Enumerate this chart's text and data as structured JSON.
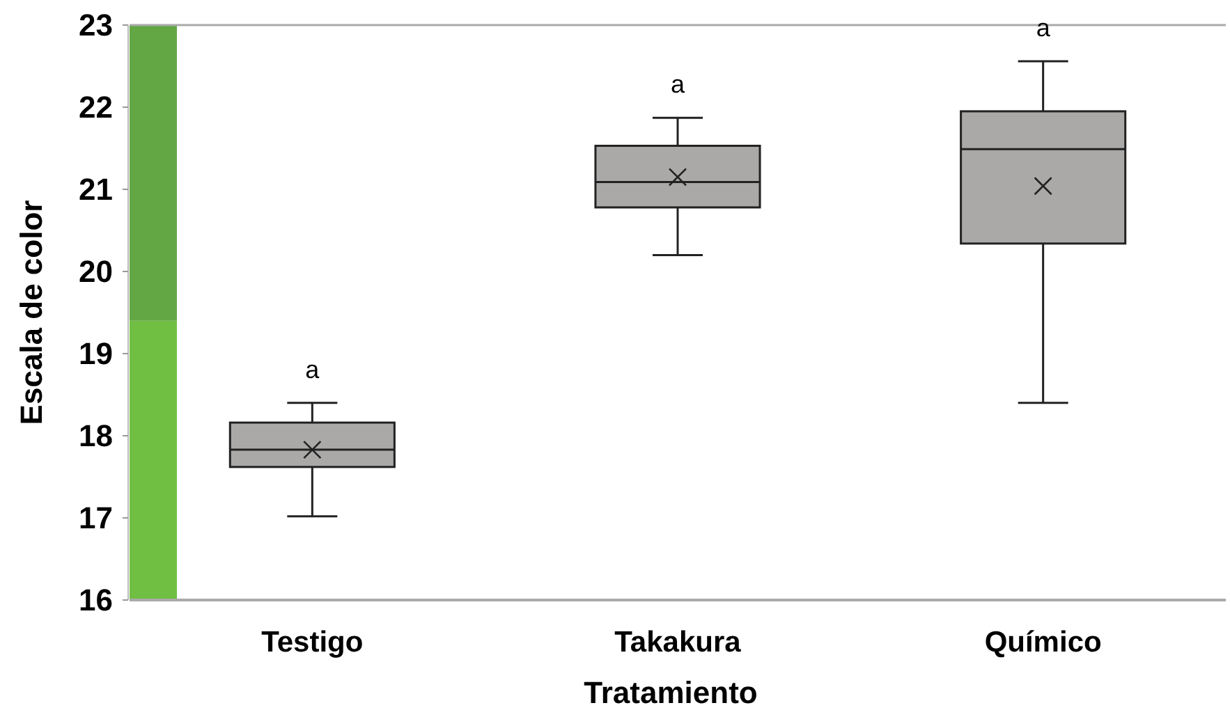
{
  "chart_data": {
    "type": "box",
    "xlabel": "Tratamiento",
    "ylabel": "Escala de color",
    "categories": [
      "Testigo",
      "Takakura",
      "Químico"
    ],
    "series": [
      {
        "color": "#aaa9a8",
        "boxes": [
          {
            "low": 17.02,
            "q1": 17.62,
            "median": 17.83,
            "q3": 18.16,
            "high": 18.4,
            "mean": 17.83
          },
          {
            "low": 20.2,
            "q1": 20.78,
            "median": 21.09,
            "q3": 21.53,
            "high": 21.87,
            "mean": 21.15
          },
          {
            "low": 18.4,
            "q1": 20.34,
            "median": 21.49,
            "q3": 21.95,
            "high": 22.56,
            "mean": 21.04
          }
        ]
      }
    ],
    "marker": "cross",
    "ylim": [
      16,
      23
    ],
    "yticks": [
      16,
      17,
      18,
      19,
      20,
      21,
      22,
      23
    ],
    "grid": false,
    "bands": [
      {
        "axis": "y",
        "from": 16,
        "to": 19.4,
        "color": "#70bf43"
      },
      {
        "axis": "y",
        "from": 19.4,
        "to": 23,
        "color": "#62a744"
      }
    ],
    "annotations": [
      "a",
      "a",
      "a"
    ]
  }
}
